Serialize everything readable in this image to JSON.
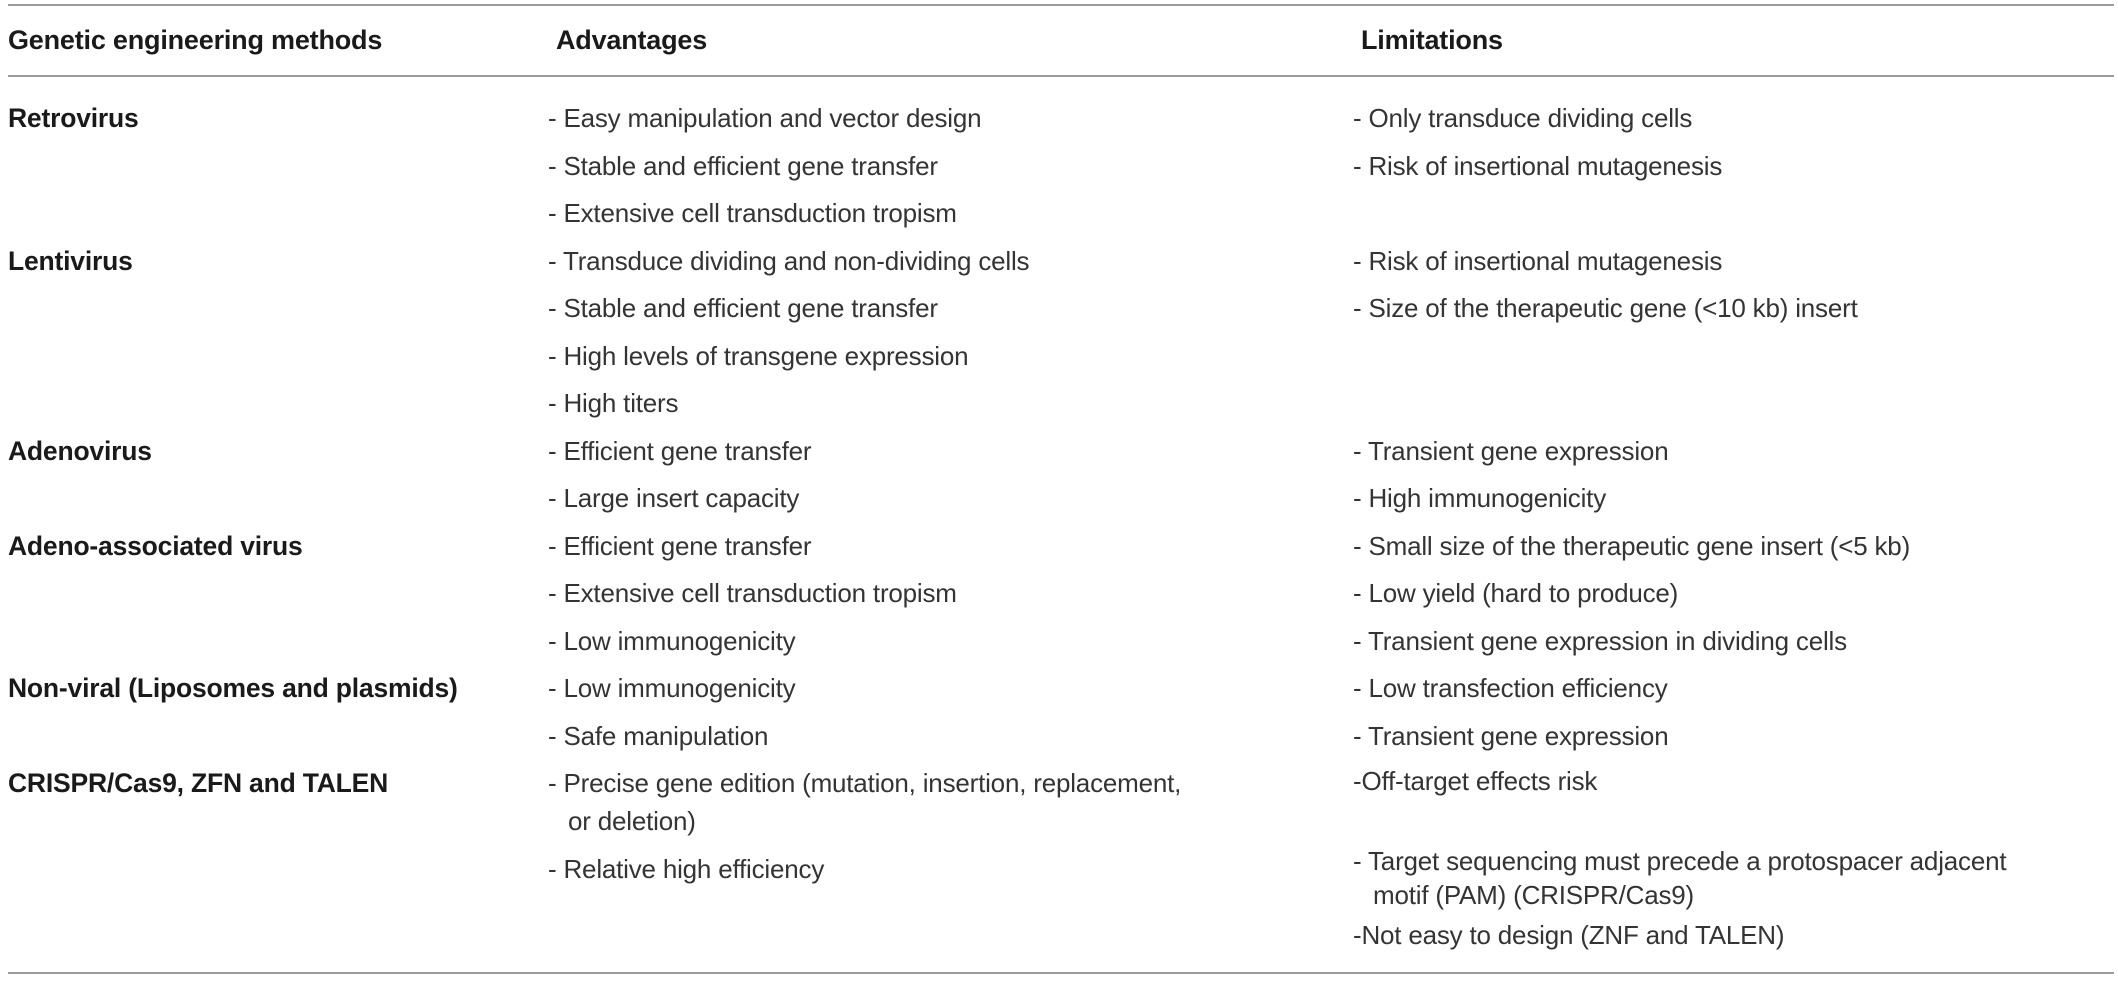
{
  "title": "Genetic engineering methods comparison table",
  "theme": {
    "background": "#ffffff",
    "text_color": "#343434",
    "heading_color": "#1a1a1a",
    "rule_color": "#9c9c9c"
  },
  "table": {
    "columns": [
      {
        "label": "Genetic engineering methods"
      },
      {
        "label": "Advantages"
      },
      {
        "label": "Limitations"
      }
    ],
    "rows": [
      {
        "method": "Retrovirus",
        "advantages": [
          "- Easy manipulation and vector design",
          "- Stable and efficient gene transfer",
          "- Extensive cell transduction tropism"
        ],
        "limitations": [
          "- Only transduce dividing cells",
          "- Risk of insertional mutagenesis"
        ]
      },
      {
        "method": "Lentivirus",
        "advantages": [
          "- Transduce dividing and non-dividing cells",
          "- Stable and efficient gene transfer",
          "- High levels of transgene expression",
          "- High titers"
        ],
        "limitations": [
          "- Risk of insertional mutagenesis",
          "- Size of the therapeutic gene (<10 kb) insert"
        ]
      },
      {
        "method": "Adenovirus",
        "advantages": [
          "- Efficient gene transfer",
          "- Large insert capacity"
        ],
        "limitations": [
          "- Transient gene expression",
          "- High immunogenicity"
        ]
      },
      {
        "method": "Adeno-associated virus",
        "advantages": [
          "- Efficient gene transfer",
          "- Extensive cell transduction tropism",
          "- Low immunogenicity"
        ],
        "limitations": [
          "- Small size of the therapeutic gene insert (<5 kb)",
          "- Low yield (hard to produce)",
          "- Transient gene expression in dividing cells"
        ]
      },
      {
        "method": "Non-viral (Liposomes and plasmids)",
        "advantages": [
          "- Low immunogenicity",
          "- Safe manipulation"
        ],
        "limitations": [
          "- Low transfection efficiency",
          "- Transient gene expression"
        ]
      },
      {
        "method": "CRISPR/Cas9, ZFN and TALEN",
        "advantages": [
          "- Precise gene edition (mutation, insertion, replacement,\nor deletion)",
          "- Relative high efficiency"
        ],
        "limitations": [
          "-Off-target effects risk",
          "",
          "- Target sequencing must precede a protospacer adjacent\nmotif (PAM) (CRISPR/Cas9)",
          "-Not easy to design (ZNF and TALEN)"
        ]
      }
    ]
  }
}
